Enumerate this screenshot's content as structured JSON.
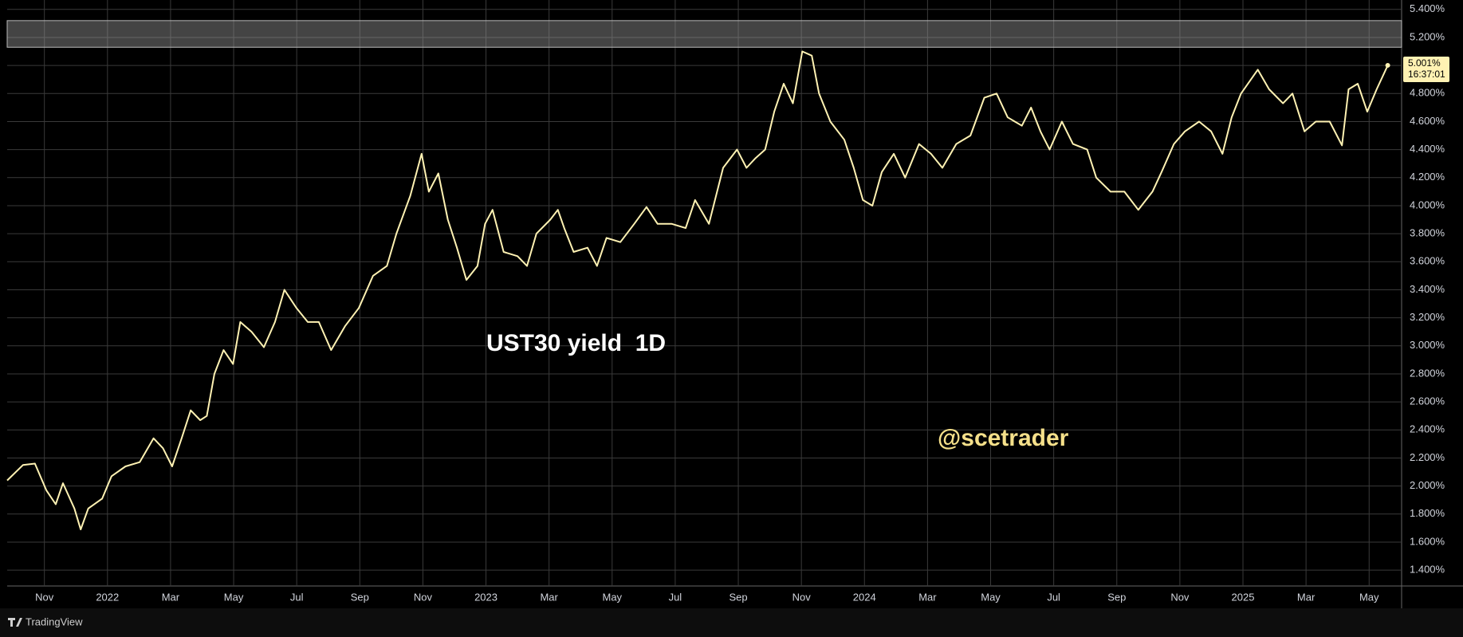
{
  "chart_data": {
    "type": "line",
    "annotations": [
      "UST30 yield  1D",
      "@scetrader"
    ],
    "brand": "TradingView",
    "last_price": {
      "value": 5.001,
      "label": "5.001%"
    },
    "countdown": "16:37:01",
    "highlight_range": [
      5.13,
      5.32
    ],
    "grid": true,
    "xlim": [
      -1.18,
      43.03
    ],
    "ylim": [
      1.287,
      5.467
    ],
    "xticks": [
      {
        "value": 0,
        "label": "Nov"
      },
      {
        "value": 2,
        "label": "2022"
      },
      {
        "value": 4,
        "label": "Mar"
      },
      {
        "value": 6,
        "label": "May"
      },
      {
        "value": 8,
        "label": "Jul"
      },
      {
        "value": 10,
        "label": "Sep"
      },
      {
        "value": 12,
        "label": "Nov"
      },
      {
        "value": 14,
        "label": "2023"
      },
      {
        "value": 16,
        "label": "Mar"
      },
      {
        "value": 18,
        "label": "May"
      },
      {
        "value": 20,
        "label": "Jul"
      },
      {
        "value": 22,
        "label": "Sep"
      },
      {
        "value": 24,
        "label": "Nov"
      },
      {
        "value": 26,
        "label": "2024"
      },
      {
        "value": 28,
        "label": "Mar"
      },
      {
        "value": 30,
        "label": "May"
      },
      {
        "value": 32,
        "label": "Jul"
      },
      {
        "value": 34,
        "label": "Sep"
      },
      {
        "value": 36,
        "label": "Nov"
      },
      {
        "value": 38,
        "label": "2025"
      },
      {
        "value": 40,
        "label": "Mar"
      },
      {
        "value": 42,
        "label": "May"
      }
    ],
    "yticks": [
      {
        "value": 1.4,
        "label": "1.400%"
      },
      {
        "value": 1.6,
        "label": "1.600%"
      },
      {
        "value": 1.8,
        "label": "1.800%"
      },
      {
        "value": 2.0,
        "label": "2.000%"
      },
      {
        "value": 2.2,
        "label": "2.200%"
      },
      {
        "value": 2.4,
        "label": "2.400%"
      },
      {
        "value": 2.6,
        "label": "2.600%"
      },
      {
        "value": 2.8,
        "label": "2.800%"
      },
      {
        "value": 3.0,
        "label": "3.000%"
      },
      {
        "value": 3.2,
        "label": "3.200%"
      },
      {
        "value": 3.4,
        "label": "3.400%"
      },
      {
        "value": 3.6,
        "label": "3.600%"
      },
      {
        "value": 3.8,
        "label": "3.800%"
      },
      {
        "value": 4.0,
        "label": "4.000%"
      },
      {
        "value": 4.2,
        "label": "4.200%"
      },
      {
        "value": 4.4,
        "label": "4.400%"
      },
      {
        "value": 4.6,
        "label": "4.600%"
      },
      {
        "value": 4.8,
        "label": "4.800%"
      },
      {
        "value": 5.0,
        "label": "5.000%"
      },
      {
        "value": 5.2,
        "label": "5.200%"
      },
      {
        "value": 5.4,
        "label": "5.400%"
      }
    ],
    "x": [
      -1.18,
      -0.68,
      -0.3,
      0.06,
      0.36,
      0.59,
      0.95,
      1.15,
      1.39,
      1.83,
      2.13,
      2.57,
      3.02,
      3.46,
      3.76,
      4.05,
      4.35,
      4.64,
      4.94,
      5.15,
      5.39,
      5.68,
      5.98,
      6.21,
      6.57,
      6.96,
      7.31,
      7.61,
      7.99,
      8.35,
      8.7,
      9.09,
      9.53,
      9.97,
      10.42,
      10.86,
      11.16,
      11.6,
      11.96,
      12.19,
      12.49,
      12.79,
      13.08,
      13.38,
      13.73,
      13.97,
      14.21,
      14.56,
      15.0,
      15.3,
      15.6,
      16.04,
      16.28,
      16.48,
      16.78,
      17.22,
      17.52,
      17.82,
      18.26,
      18.7,
      19.09,
      19.44,
      19.89,
      20.33,
      20.63,
      21.07,
      21.52,
      21.96,
      22.26,
      22.55,
      22.85,
      23.14,
      23.44,
      23.73,
      24.03,
      24.33,
      24.56,
      24.92,
      25.36,
      25.66,
      25.95,
      26.25,
      26.55,
      26.93,
      27.29,
      27.73,
      28.11,
      28.47,
      28.91,
      29.36,
      29.8,
      30.19,
      30.54,
      30.99,
      31.28,
      31.58,
      31.87,
      32.26,
      32.61,
      33.06,
      33.35,
      33.8,
      34.24,
      34.68,
      35.13,
      35.42,
      35.81,
      36.16,
      36.61,
      36.99,
      37.35,
      37.64,
      37.94,
      38.47,
      38.83,
      39.27,
      39.57,
      39.95,
      40.31,
      40.75,
      41.14,
      41.35,
      41.64,
      41.94,
      42.24,
      42.59
    ],
    "series": [
      {
        "color": "#fff2b3",
        "values": [
          2.04,
          2.15,
          2.16,
          1.97,
          1.87,
          2.02,
          1.84,
          1.69,
          1.84,
          1.91,
          2.07,
          2.14,
          2.17,
          2.34,
          2.27,
          2.14,
          2.34,
          2.54,
          2.47,
          2.5,
          2.8,
          2.97,
          2.87,
          3.17,
          3.1,
          2.99,
          3.17,
          3.4,
          3.27,
          3.17,
          3.17,
          2.97,
          3.14,
          3.27,
          3.5,
          3.57,
          3.8,
          4.07,
          4.37,
          4.1,
          4.23,
          3.9,
          3.7,
          3.47,
          3.57,
          3.87,
          3.97,
          3.67,
          3.64,
          3.57,
          3.8,
          3.9,
          3.97,
          3.84,
          3.67,
          3.7,
          3.57,
          3.77,
          3.74,
          3.87,
          3.99,
          3.87,
          3.87,
          3.84,
          4.04,
          3.87,
          4.27,
          4.4,
          4.27,
          4.34,
          4.4,
          4.67,
          4.87,
          4.73,
          5.1,
          5.07,
          4.8,
          4.6,
          4.47,
          4.27,
          4.04,
          4.0,
          4.24,
          4.37,
          4.2,
          4.44,
          4.37,
          4.27,
          4.44,
          4.5,
          4.77,
          4.8,
          4.63,
          4.57,
          4.7,
          4.53,
          4.4,
          4.6,
          4.44,
          4.4,
          4.2,
          4.1,
          4.1,
          3.97,
          4.1,
          4.24,
          4.44,
          4.53,
          4.6,
          4.53,
          4.37,
          4.63,
          4.8,
          4.97,
          4.83,
          4.73,
          4.8,
          4.53,
          4.6,
          4.6,
          4.43,
          4.83,
          4.87,
          4.67,
          4.83,
          5.0
        ]
      }
    ]
  }
}
